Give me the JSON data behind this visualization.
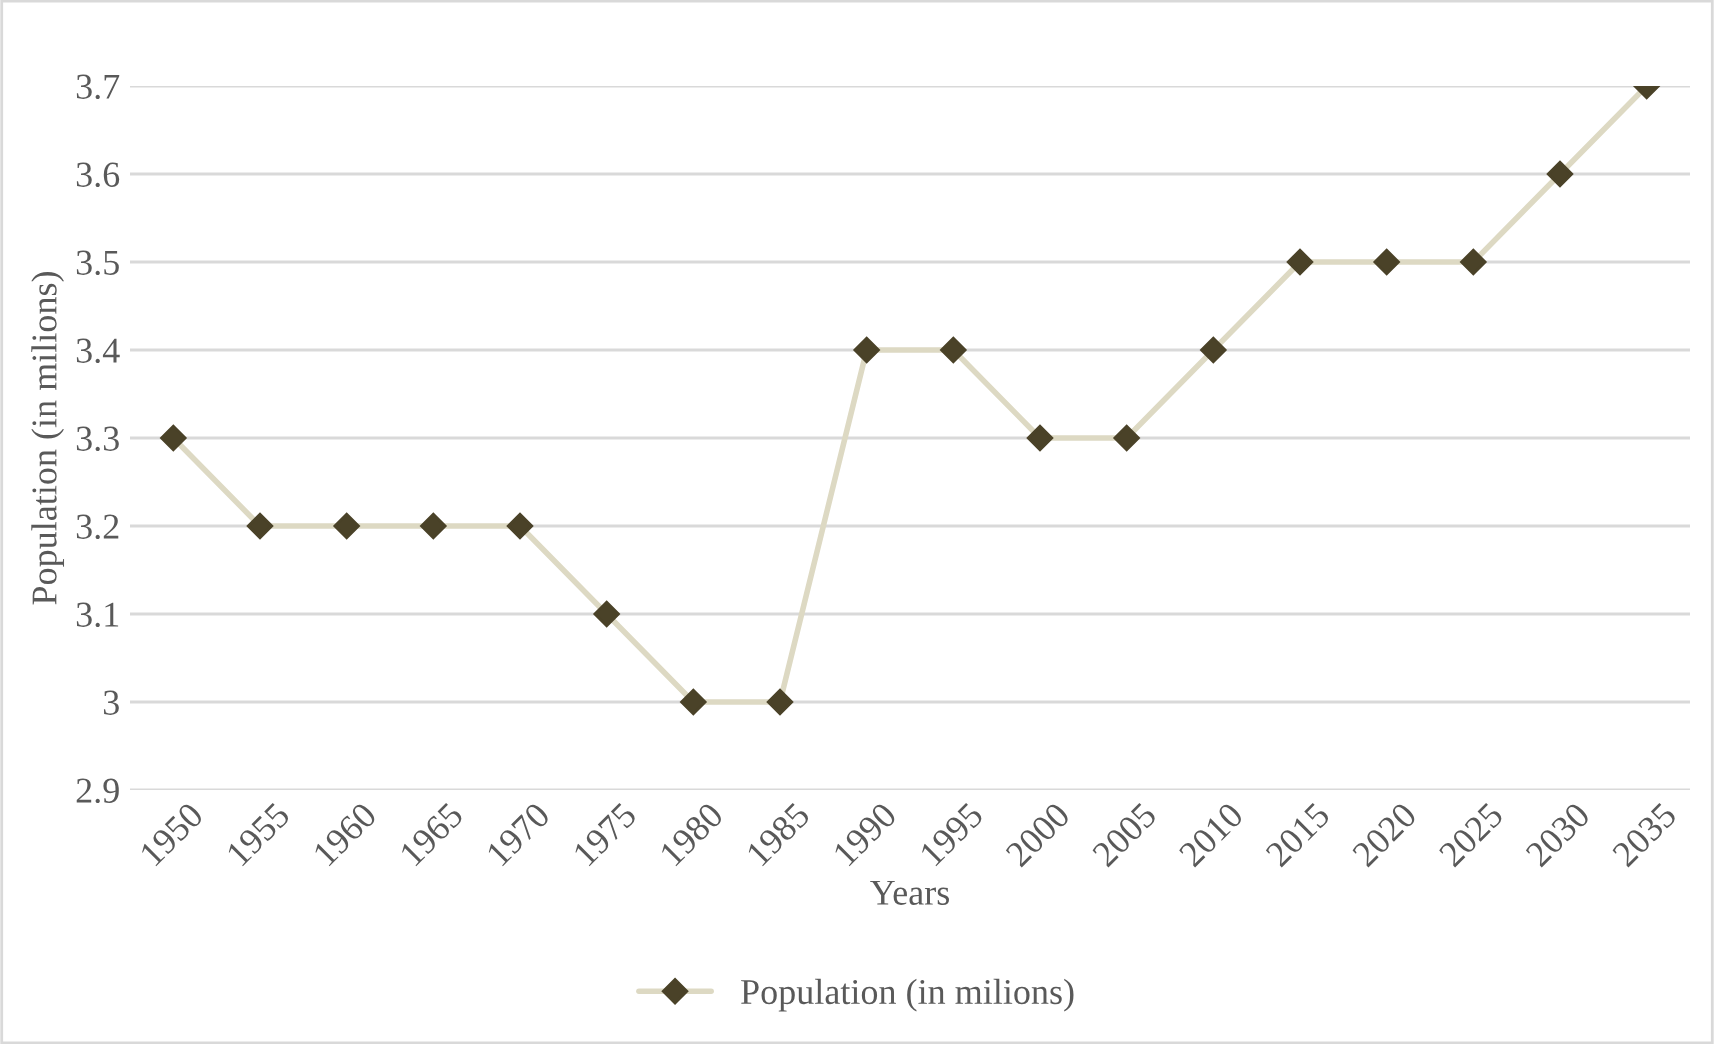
{
  "chart_data": {
    "type": "line",
    "xlabel": "Years",
    "ylabel": "Population (in milions)",
    "categories": [
      "1950",
      "1955",
      "1960",
      "1965",
      "1970",
      "1975",
      "1980",
      "1985",
      "1990",
      "1995",
      "2000",
      "2005",
      "2010",
      "2015",
      "2020",
      "2025",
      "2030",
      "2035"
    ],
    "series": [
      {
        "name": "Population (in milions)",
        "color": "#ddd9c3",
        "colors": [
          "#4a4228",
          "#4a4228",
          "#4a4228",
          "#4a4228",
          "#4a4228",
          "#4a4228",
          "#4a4228",
          "#4a4228",
          "#4a4228",
          "#4a4228",
          "#4a4228",
          "#4a4228",
          "#4a4228",
          "#4a4228",
          "#4a4228",
          "#4a4228",
          "#4a4228",
          "#4a4228"
        ],
        "values": [
          3.3,
          3.2,
          3.2,
          3.2,
          3.2,
          3.1,
          3.0,
          3.0,
          3.4,
          3.4,
          3.3,
          3.3,
          3.4,
          3.5,
          3.5,
          3.5,
          3.6,
          3.7
        ]
      }
    ],
    "ylim": [
      2.9,
      3.7
    ],
    "yticks": [
      2.9,
      3.0,
      3.1,
      3.2,
      3.3,
      3.4,
      3.5,
      3.6,
      3.7
    ],
    "grid": "y",
    "legend": "bottom",
    "marker": "diamond",
    "line_style": "solid"
  }
}
